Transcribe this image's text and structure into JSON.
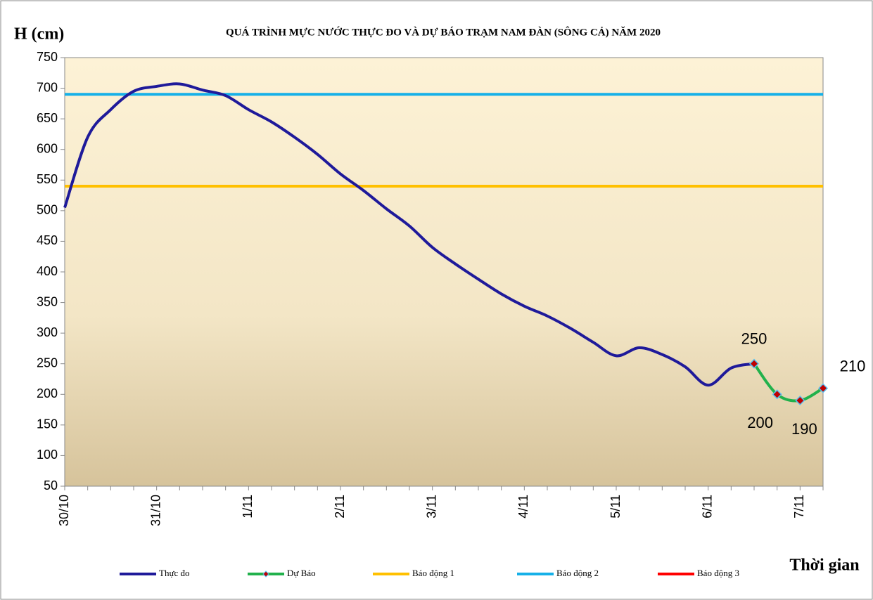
{
  "chart_data": {
    "type": "line",
    "title": "QUÁ TRÌNH  MỰC NƯỚC THỰC ĐO VÀ DỰ BÁO TRẠM   NAM  ĐÀN (SÔNG CẢ) NĂM 2020",
    "y_label": "H (cm)",
    "x_label": "Thời gian",
    "categories": [
      "30/10",
      null,
      null,
      null,
      "31/10",
      null,
      null,
      null,
      "1/11",
      null,
      null,
      null,
      "2/11",
      null,
      null,
      null,
      "3/11",
      null,
      null,
      null,
      "4/11",
      null,
      null,
      null,
      "5/11",
      null,
      null,
      null,
      "6/11",
      null,
      null,
      null,
      "7/11",
      null
    ],
    "series": [
      {
        "name": "Thực đo",
        "color": "#1f1a9a",
        "values": [
          505,
          620,
          665,
          695,
          703,
          707,
          697,
          688,
          665,
          645,
          620,
          592,
          560,
          533,
          503,
          475,
          440,
          413,
          388,
          364,
          344,
          328,
          308,
          285,
          263,
          276,
          265,
          245,
          215,
          243,
          250,
          null,
          null,
          null
        ]
      },
      {
        "name": "Dự Báo",
        "color": "#22b14c",
        "marker_color": "#c00000",
        "values": [
          null,
          null,
          null,
          null,
          null,
          null,
          null,
          null,
          null,
          null,
          null,
          null,
          null,
          null,
          null,
          null,
          null,
          null,
          null,
          null,
          null,
          null,
          null,
          null,
          null,
          null,
          null,
          null,
          null,
          null,
          250,
          200,
          190,
          210
        ]
      }
    ],
    "alarms": [
      {
        "name": "Báo động 1",
        "color": "#ffc000",
        "level": 540
      },
      {
        "name": "Báo động 2",
        "color": "#16b0e8",
        "level": 690
      },
      {
        "name": "Báo động 3",
        "color": "#ff0000"
      }
    ],
    "ylim": [
      50,
      750
    ],
    "yticks": [
      50,
      100,
      150,
      200,
      250,
      300,
      350,
      400,
      450,
      500,
      550,
      600,
      650,
      700,
      750
    ]
  }
}
